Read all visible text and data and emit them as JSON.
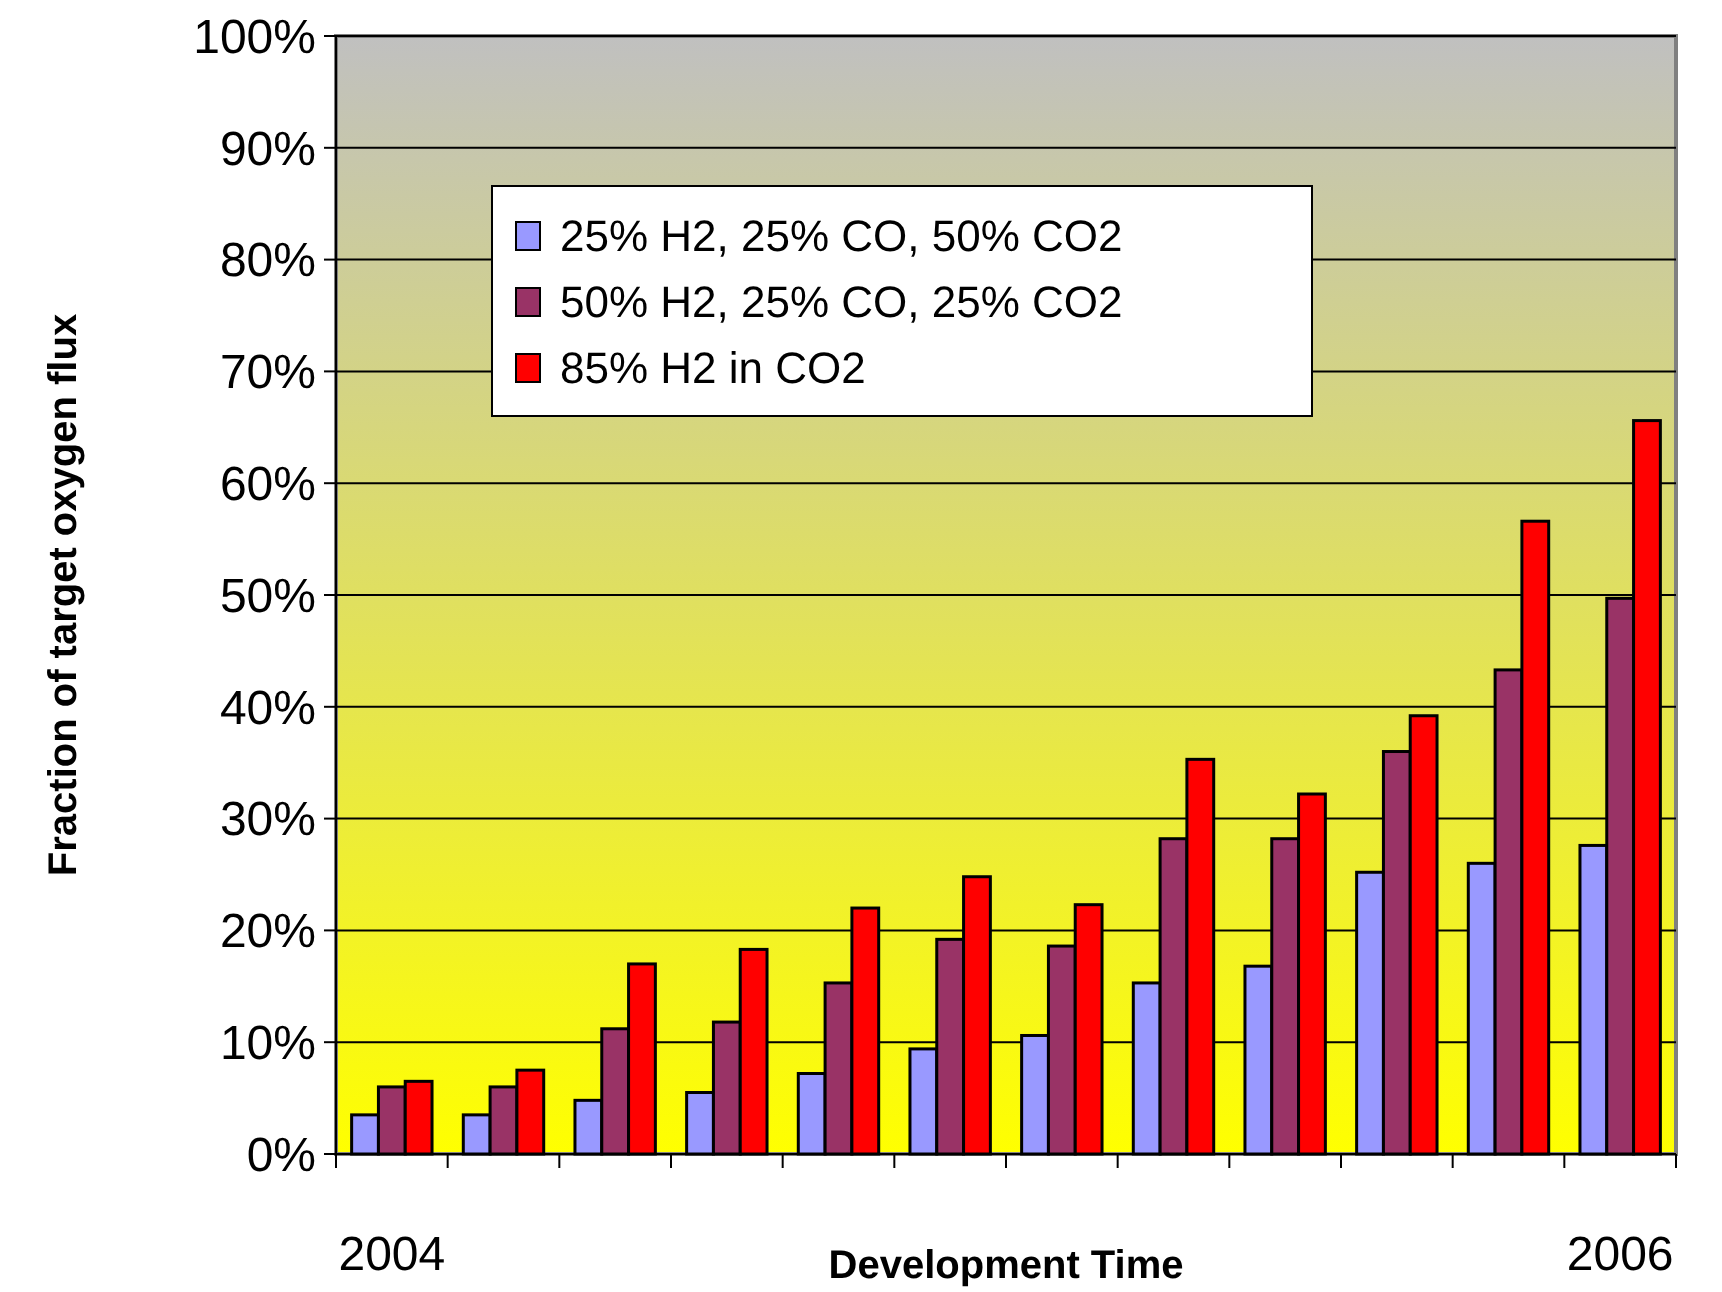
{
  "chart_data": {
    "type": "bar",
    "xlabel": "Development Time",
    "ylabel": "Fraction of target oxygen flux",
    "categories": [
      "2004",
      null,
      null,
      null,
      null,
      null,
      null,
      null,
      null,
      null,
      null,
      "2006"
    ],
    "series": [
      {
        "name": "25% H2, 25% CO, 50% CO2",
        "color": "#9999ff",
        "values": [
          3.5,
          3.5,
          4.8,
          5.5,
          7.2,
          9.4,
          10.6,
          15.3,
          16.8,
          25.2,
          26,
          27.6
        ]
      },
      {
        "name": "50% H2, 25% CO, 25% CO2",
        "color": "#993366",
        "values": [
          6,
          6,
          11.2,
          11.8,
          15.3,
          19.2,
          18.6,
          28.2,
          28.2,
          36,
          43.3,
          49.7
        ]
      },
      {
        "name": "85% H2 in CO2",
        "color": "#ff0000",
        "values": [
          6.5,
          7.5,
          17,
          18.3,
          22,
          24.8,
          22.3,
          35.3,
          32.2,
          39.2,
          56.6,
          65.6
        ]
      }
    ],
    "ylim": [
      0,
      100
    ],
    "yticks": [
      {
        "value": 0,
        "label": "0%"
      },
      {
        "value": 10,
        "label": "10%"
      },
      {
        "value": 20,
        "label": "20%"
      },
      {
        "value": 30,
        "label": "30%"
      },
      {
        "value": 40,
        "label": "40%"
      },
      {
        "value": 50,
        "label": "50%"
      },
      {
        "value": 60,
        "label": "60%"
      },
      {
        "value": 70,
        "label": "70%"
      },
      {
        "value": 80,
        "label": "80%"
      },
      {
        "value": 90,
        "label": "90%"
      },
      {
        "value": 100,
        "label": "100%"
      }
    ],
    "grid": "y",
    "legend": "top left"
  }
}
